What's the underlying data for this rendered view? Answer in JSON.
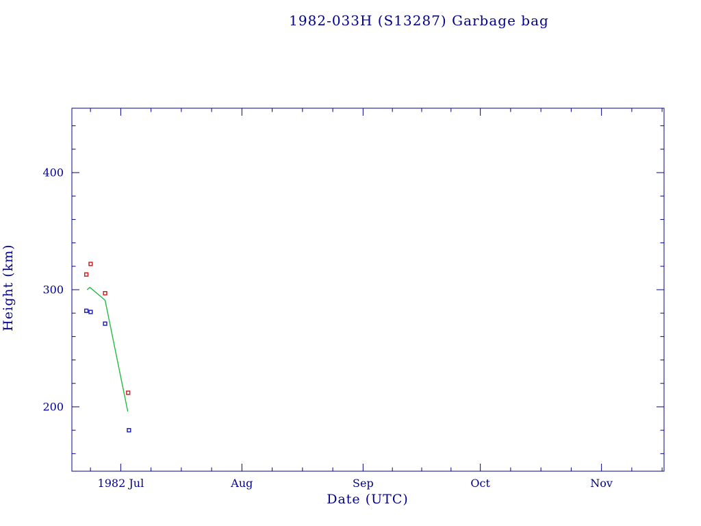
{
  "page": {
    "background": "#ffffff",
    "text_color": "#00008b"
  },
  "chart_data": {
    "type": "scatter",
    "title": "1982-033H (S13287) Garbage bag",
    "xlabel": "Date (UTC)",
    "ylabel": "Height (km)",
    "text_color": "#00008b",
    "axis_color": "#00008b",
    "legend": "none",
    "grid": "off",
    "x_axis": {
      "unit": "days since 1982-06-01",
      "min": 17.5,
      "max": 169,
      "major_ticks": [
        {
          "value": 30,
          "label": "1982 Jul"
        },
        {
          "value": 61,
          "label": "Aug"
        },
        {
          "value": 92,
          "label": "Sep"
        },
        {
          "value": 122,
          "label": "Oct"
        },
        {
          "value": 153,
          "label": "Nov"
        }
      ]
    },
    "y_axis": {
      "min": 145,
      "max": 455,
      "major_ticks": [
        200,
        300,
        400
      ],
      "minor_step": 20
    },
    "series": [
      {
        "name": "red-squares-apogee-height",
        "marker": "square",
        "line": false,
        "color": "#cc2222",
        "points": [
          [
            21.2,
            313
          ],
          [
            22.3,
            322
          ],
          [
            26.0,
            297
          ],
          [
            31.9,
            212
          ]
        ]
      },
      {
        "name": "blue-squares-perigee-height",
        "marker": "square",
        "line": false,
        "color": "#2222bb",
        "points": [
          [
            21.2,
            282
          ],
          [
            22.3,
            281
          ],
          [
            26.0,
            271
          ],
          [
            32.1,
            180
          ]
        ]
      },
      {
        "name": "green-line-mean-height",
        "marker": "none",
        "line": true,
        "color": "#22bb44",
        "points": [
          [
            21.4,
            300
          ],
          [
            22.1,
            302
          ],
          [
            26.0,
            291
          ],
          [
            31.8,
            196
          ]
        ]
      }
    ]
  }
}
